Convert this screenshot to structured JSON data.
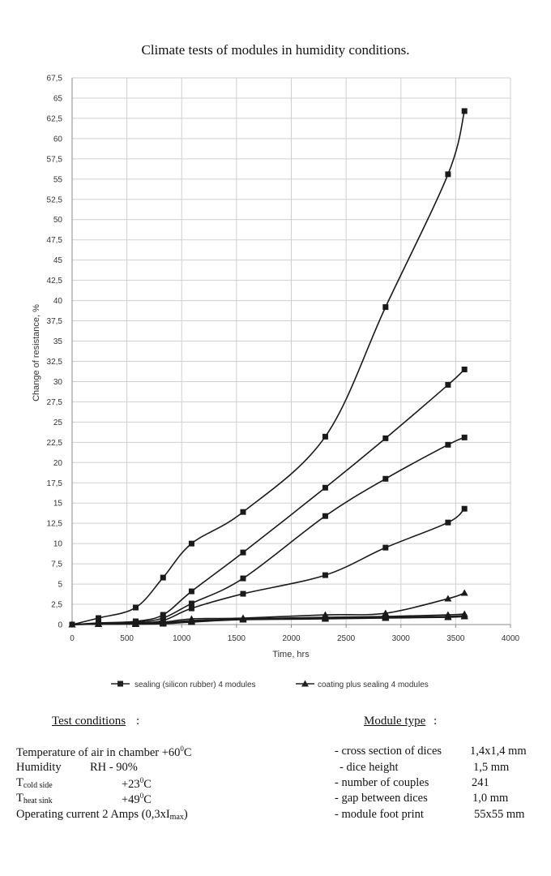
{
  "chart_data": {
    "type": "line",
    "title": "Climate tests of modules in humidity conditions.",
    "xlabel": "Time, hrs",
    "ylabel": "Change of resistance, %",
    "xlim": [
      0,
      4000
    ],
    "ylim": [
      0,
      67.5
    ],
    "x_ticks": [
      "0",
      "500",
      "1000",
      "1500",
      "2000",
      "2500",
      "3000",
      "3500",
      "4000"
    ],
    "y_ticks": [
      "0",
      "2,5",
      "5",
      "7,5",
      "10",
      "12,5",
      "15",
      "17,5",
      "20",
      "22,5",
      "25",
      "27,5",
      "30",
      "32,5",
      "35",
      "37,5",
      "40",
      "42,5",
      "45",
      "47,5",
      "50",
      "52,5",
      "55",
      "57,5",
      "60",
      "62,5",
      "65",
      "67,5"
    ],
    "grid": true,
    "legend_position": "bottom",
    "legend": [
      {
        "label": "sealing (silicon rubber) 4 modules",
        "marker": "square"
      },
      {
        "label": "coating plus sealing 4 modules",
        "marker": "triangle"
      }
    ],
    "series": [
      {
        "group": "sealing (silicon rubber) 4 modules",
        "marker": "square",
        "x": [
          0,
          240,
          580,
          830,
          1090,
          1560,
          2310,
          2860,
          3430,
          3580
        ],
        "y": [
          0,
          0.8,
          2.1,
          5.8,
          10.0,
          13.9,
          23.2,
          39.2,
          55.6,
          63.4
        ]
      },
      {
        "group": "sealing (silicon rubber) 4 modules",
        "marker": "square",
        "x": [
          0,
          240,
          580,
          830,
          1090,
          1560,
          2310,
          2860,
          3430,
          3580
        ],
        "y": [
          0,
          0.2,
          0.4,
          1.2,
          4.1,
          8.9,
          16.9,
          23.0,
          29.6,
          31.5
        ]
      },
      {
        "group": "sealing (silicon rubber) 4 modules",
        "marker": "square",
        "x": [
          0,
          240,
          580,
          830,
          1090,
          1560,
          2310,
          2860,
          3430,
          3580
        ],
        "y": [
          0,
          0.1,
          0.3,
          0.8,
          2.6,
          5.7,
          13.4,
          18.0,
          22.2,
          23.1
        ]
      },
      {
        "group": "sealing (silicon rubber) 4 modules",
        "marker": "square",
        "x": [
          0,
          240,
          580,
          830,
          1090,
          1560,
          2310,
          2860,
          3430,
          3580
        ],
        "y": [
          0,
          0.1,
          0.2,
          0.5,
          2.0,
          3.8,
          6.1,
          9.5,
          12.6,
          14.3
        ]
      },
      {
        "group": "coating plus sealing 4 modules",
        "marker": "triangle",
        "x": [
          0,
          240,
          580,
          830,
          1090,
          1560,
          2310,
          2860,
          3430,
          3580
        ],
        "y": [
          0,
          0.1,
          0.2,
          0.3,
          0.7,
          0.8,
          1.2,
          1.4,
          3.2,
          3.9
        ]
      },
      {
        "group": "coating plus sealing 4 modules",
        "marker": "triangle",
        "x": [
          0,
          240,
          580,
          830,
          1090,
          1560,
          2310,
          2860,
          3430,
          3580
        ],
        "y": [
          0,
          0.05,
          0.1,
          0.2,
          0.5,
          0.7,
          0.9,
          1.0,
          1.2,
          1.3
        ]
      },
      {
        "group": "coating plus sealing 4 modules",
        "marker": "triangle",
        "x": [
          0,
          240,
          580,
          830,
          1090,
          1560,
          2310,
          2860,
          3430,
          3580
        ],
        "y": [
          0,
          0.05,
          0.1,
          0.2,
          0.4,
          0.7,
          0.8,
          0.9,
          1.0,
          1.1
        ]
      },
      {
        "group": "coating plus sealing 4 modules",
        "marker": "triangle",
        "x": [
          0,
          240,
          580,
          830,
          1090,
          1560,
          2310,
          2860,
          3430,
          3580
        ],
        "y": [
          0,
          0.05,
          0.05,
          0.1,
          0.3,
          0.6,
          0.7,
          0.8,
          0.9,
          1.0
        ]
      }
    ]
  },
  "conditions": {
    "heading": "Test conditions",
    "heading_suffix": ":",
    "temperature": {
      "label": "Temperature of air in chamber +60",
      "sup": "0",
      "unit": "C"
    },
    "humidity": {
      "label": "Humidity",
      "value": "RH  - 90%"
    },
    "t_cold": {
      "main": "T",
      "sub": "cold side",
      "value_main": "+23",
      "sup": "0",
      "unit": "C"
    },
    "t_heat": {
      "main": "T",
      "sub": "heat sink",
      "value_main": "+49",
      "sup": "0",
      "unit": "C"
    },
    "current": {
      "label": "Operating current  2 Amps (0,3xI",
      "sub": "max",
      "close": ")"
    }
  },
  "module": {
    "heading": "Module type",
    "heading_suffix": ":",
    "rows": [
      {
        "label": "- cross section of dices",
        "value": "1,4x1,4 mm"
      },
      {
        "label": "- dice height",
        "value": "1,5 mm"
      },
      {
        "label": "- number of couples",
        "value": "241"
      },
      {
        "label": "- gap between dices",
        "value": "1,0 mm"
      },
      {
        "label": "- module foot print",
        "value": "55x55 mm"
      }
    ]
  }
}
